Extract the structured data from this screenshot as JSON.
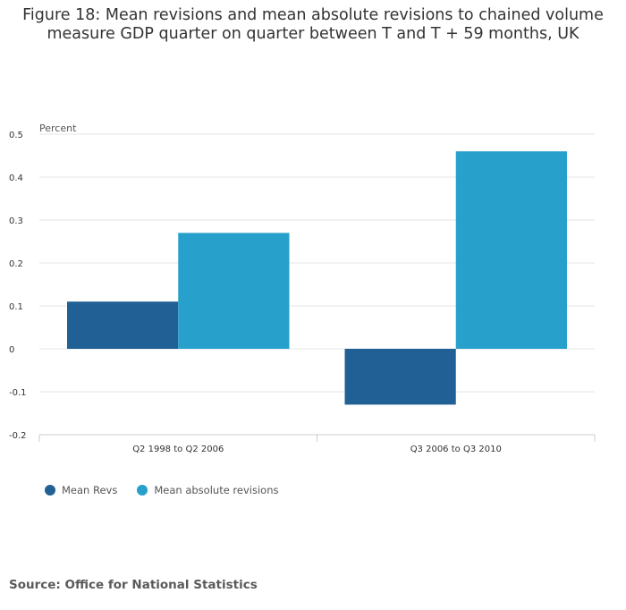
{
  "title_lines": [
    "Figure 18: Mean revisions and mean absolute revisions to chained volume",
    "measure GDP quarter on quarter between T and T + 59 months, UK"
  ],
  "source": "Source: Office for National Statistics",
  "colors": {
    "mean_revs": "#206095",
    "mean_abs": "#27a0cc",
    "grid": "#e6e6e6",
    "axis": "#cccccc"
  },
  "chart_data": {
    "type": "bar",
    "title": "Figure 18: Mean revisions and mean absolute revisions to chained volume measure GDP quarter on quarter between T and T + 59 months, UK",
    "ylabel": "Percent",
    "xlabel": "",
    "ylim": [
      -0.2,
      0.5
    ],
    "yticks": [
      0.5,
      0.4,
      0.3,
      0.2,
      0.1,
      0,
      -0.1,
      -0.2
    ],
    "ytick_labels": [
      "0.5",
      "0.4",
      "0.3",
      "0.2",
      "0.1",
      "0",
      "-0.1",
      "-0.2"
    ],
    "categories": [
      "Q2 1998 to Q2 2006",
      "Q3 2006 to Q3 2010"
    ],
    "series": [
      {
        "name": "Mean Revs",
        "values": [
          0.11,
          -0.13
        ]
      },
      {
        "name": "Mean absolute revisions",
        "values": [
          0.27,
          0.46
        ]
      }
    ],
    "grid": true,
    "legend_position": "bottom-left"
  }
}
